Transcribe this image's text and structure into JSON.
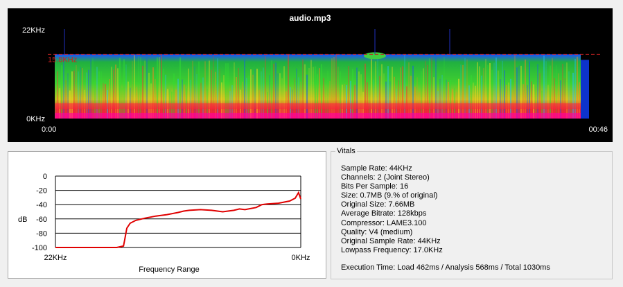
{
  "spectrogram": {
    "title": "audio.mp3",
    "freq_top_label": "22KHz",
    "freq_bottom_label": "0KHz",
    "time_start_label": "0:00",
    "time_end_label": "00:46",
    "cutoff_label": "15.8KHz",
    "cutoff_khz": 15.8,
    "max_khz": 22,
    "colors": {
      "background": "#000000",
      "cutoff_line": "#c02020",
      "heat_low": "#1e3cff",
      "heat_mid": "#2ad02a",
      "heat_high": "#ff2020"
    }
  },
  "frequency_graph": {
    "ylabel": "dB",
    "xlabel": "Frequency Range",
    "x_left_label": "22KHz",
    "x_right_label": "0KHz",
    "line_color": "#e00000"
  },
  "chart_data": {
    "type": "line",
    "xlabel": "Frequency Range",
    "ylabel": "dB",
    "x_unit": "KHz",
    "xlim": [
      22,
      0
    ],
    "ylim": [
      -100,
      0
    ],
    "yticks": [
      0,
      -20,
      -40,
      -60,
      -80,
      -100
    ],
    "grid": true,
    "series": [
      {
        "x": [
          22,
          20,
          18,
          16.5,
          15.9,
          15.8,
          15.6,
          15.3,
          14.8,
          14,
          13,
          12,
          11,
          10.5,
          10,
          9,
          8,
          7,
          6,
          5.5,
          5,
          4,
          3.5,
          3,
          2,
          1,
          0.5,
          0.2,
          0
        ],
        "values": [
          -100,
          -100,
          -100,
          -100,
          -98,
          -90,
          -73,
          -66,
          -62,
          -59,
          -56,
          -54,
          -51,
          -49,
          -48,
          -47,
          -48,
          -50,
          -48,
          -46,
          -47,
          -44,
          -40,
          -39,
          -38,
          -35,
          -31,
          -23,
          -32
        ]
      }
    ]
  },
  "vitals": {
    "title": "Vitals",
    "lines": [
      "Sample Rate: 44KHz",
      "Channels: 2 (Joint Stereo)",
      "Bits Per Sample: 16",
      "Size: 0.7MB (9.% of original)",
      "Original Size: 7.66MB",
      "Average Bitrate: 128kbps",
      "Compressor: LAME3.100",
      "Quality: V4 (medium)",
      "Original Sample Rate: 44KHz",
      "Lowpass Frequency: 17.0KHz"
    ],
    "execution": "Execution Time: Load 462ms / Analysis 568ms / Total 1030ms"
  }
}
